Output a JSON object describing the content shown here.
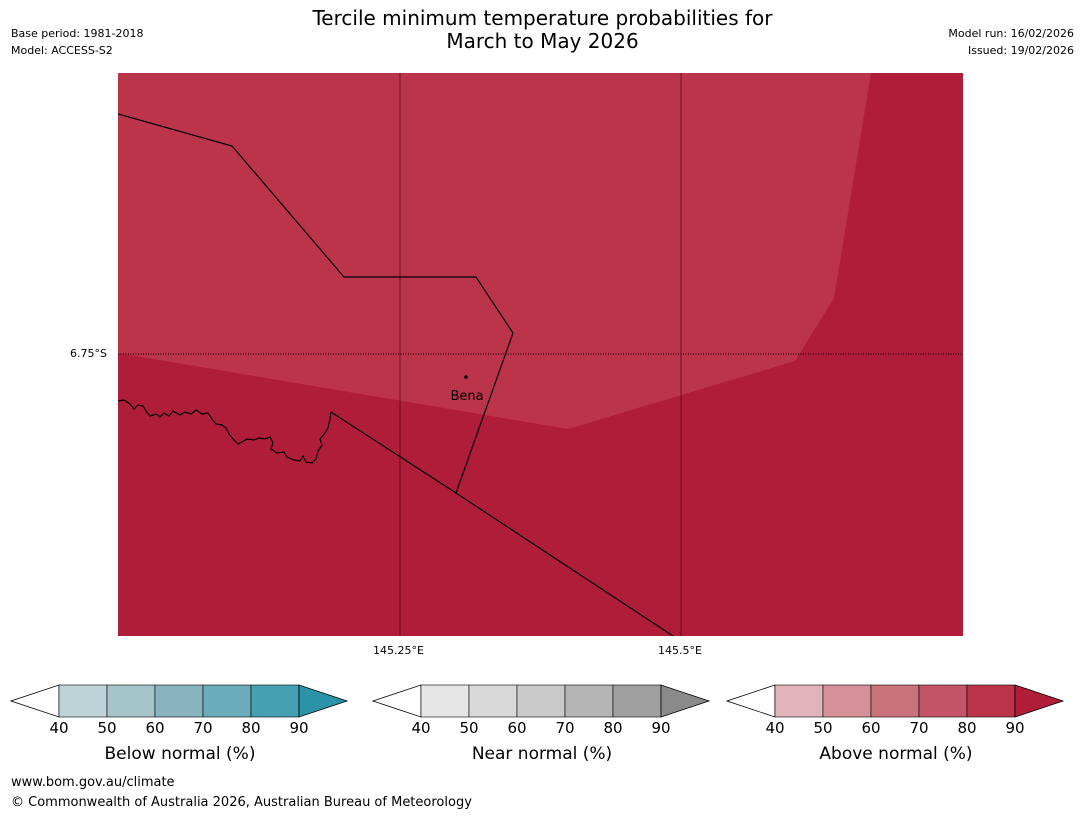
{
  "header": {
    "title_line1": "Tercile minimum temperature probabilities for",
    "title_line2": "March to May 2026",
    "base_period": "Base period: 1981-2018",
    "model": "Model: ACCESS-S2",
    "model_run": "Model run: 16/02/2026",
    "issued": "Issued: 19/02/2026"
  },
  "map": {
    "latitude_label": "6.75°S",
    "longitude_labels": [
      "145.25°E",
      "145.5°E"
    ],
    "place_name": "Bena",
    "colors": {
      "above_80_90": "#bc344a",
      "above_90_plus": "#b01d38",
      "boundary_line": "#000000"
    }
  },
  "colorbars": [
    {
      "title": "Below normal (%)",
      "ticks": [
        "40",
        "50",
        "60",
        "70",
        "80",
        "90"
      ],
      "colors": [
        "#ffffff",
        "#bed3d8",
        "#a5c4ca",
        "#88b4c0",
        "#6cabb9",
        "#45a0b1",
        "#2a93a8"
      ]
    },
    {
      "title": "Near normal (%)",
      "ticks": [
        "40",
        "50",
        "60",
        "70",
        "80",
        "90"
      ],
      "colors": [
        "#ffffff",
        "#e6e6e6",
        "#d9d9d9",
        "#cacaca",
        "#b4b4b4",
        "#a0a0a0",
        "#8a8a8a"
      ]
    },
    {
      "title": "Above normal (%)",
      "ticks": [
        "40",
        "50",
        "60",
        "70",
        "80",
        "90"
      ],
      "colors": [
        "#ffffff",
        "#e1b4bb",
        "#d59199",
        "#cb737b",
        "#c45566",
        "#bc344a",
        "#b01d38"
      ]
    }
  ],
  "footer": {
    "url": "www.bom.gov.au/climate",
    "copyright": "© Commonwealth of Australia 2026, Australian Bureau of Meteorology"
  }
}
